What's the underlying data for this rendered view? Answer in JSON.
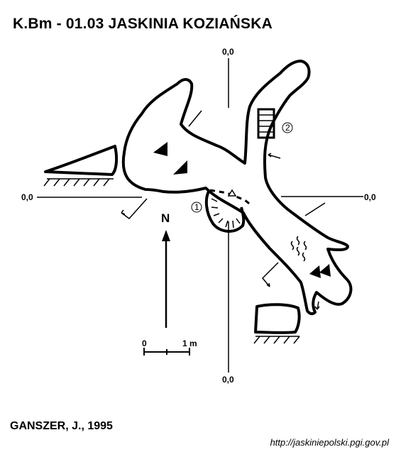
{
  "header": {
    "title": "K.Bm - 01.03  JASKINIA KOZIAŃSKA"
  },
  "axes": {
    "top_label": "0,0",
    "left_label": "0,0",
    "right_label": "0,0",
    "bottom_label": "0,0"
  },
  "north": {
    "label": "N"
  },
  "scale_bar": {
    "start_label": "0",
    "end_label": "1 m"
  },
  "markers": {
    "m1": "1",
    "m2": "2"
  },
  "footer": {
    "author": "GANSZER, J., 1995",
    "url": "http://jaskiniepolski.pgi.gov.pl"
  }
}
